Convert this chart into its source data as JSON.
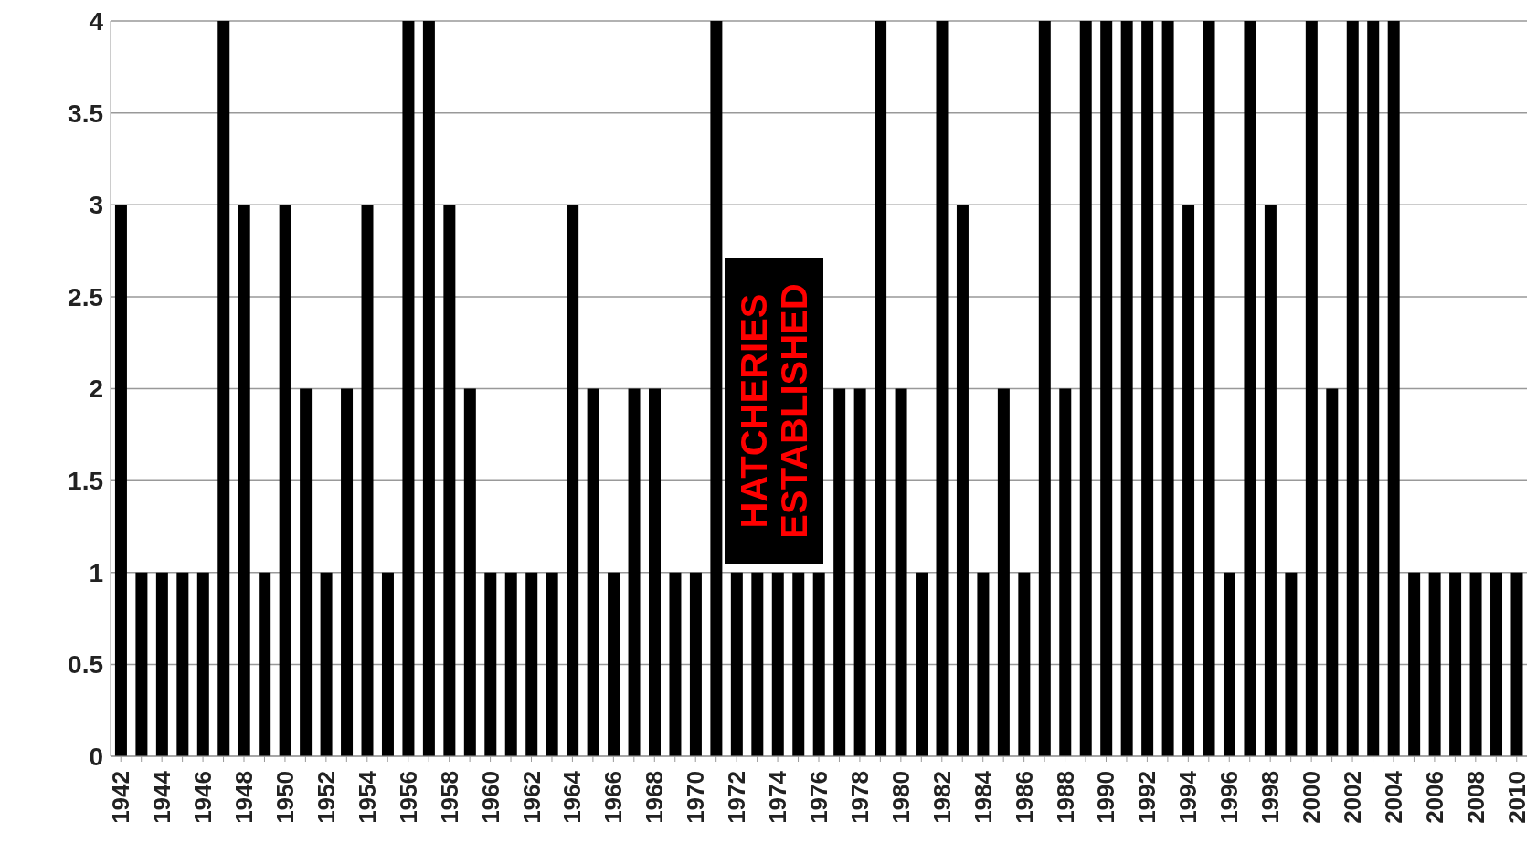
{
  "chart_data": {
    "type": "bar",
    "categories": [
      "1942",
      null,
      "1944",
      null,
      "1946",
      null,
      "1948",
      null,
      "1950",
      null,
      "1952",
      null,
      "1954",
      null,
      "1956",
      null,
      "1958",
      null,
      "1960",
      null,
      "1962",
      null,
      "1964",
      null,
      "1966",
      null,
      "1968",
      null,
      "1970",
      null,
      "1972",
      null,
      "1974",
      null,
      "1976",
      null,
      "1978",
      null,
      "1980",
      null,
      "1982",
      null,
      "1984",
      null,
      "1986",
      null,
      "1988",
      null,
      "1990",
      null,
      "1992",
      null,
      "1994",
      null,
      "1996",
      null,
      "1998",
      null,
      "2000",
      null,
      "2002",
      null,
      "2004",
      null,
      "2006",
      null,
      "2008",
      null,
      "2010"
    ],
    "values": [
      3,
      1,
      1,
      1,
      1,
      4,
      3,
      1,
      3,
      2,
      1,
      2,
      3,
      1,
      4,
      4,
      3,
      2,
      1,
      1,
      1,
      1,
      3,
      2,
      1,
      2,
      2,
      1,
      1,
      4,
      1,
      1,
      1,
      1,
      1,
      2,
      2,
      4,
      2,
      1,
      4,
      3,
      1,
      2,
      1,
      4,
      2,
      4,
      4,
      4,
      4,
      4,
      3,
      4,
      1,
      4,
      3,
      1,
      4,
      2,
      4,
      4,
      4,
      1,
      1,
      1,
      1,
      1,
      1
    ],
    "color": "#000000",
    "ylim": [
      0,
      4
    ],
    "yticks": [
      0,
      0.5,
      1,
      1.5,
      2,
      2.5,
      3,
      3.5,
      4
    ],
    "grid": "y",
    "annotations": [
      "HATCHERIES ESTABLISHED"
    ]
  }
}
